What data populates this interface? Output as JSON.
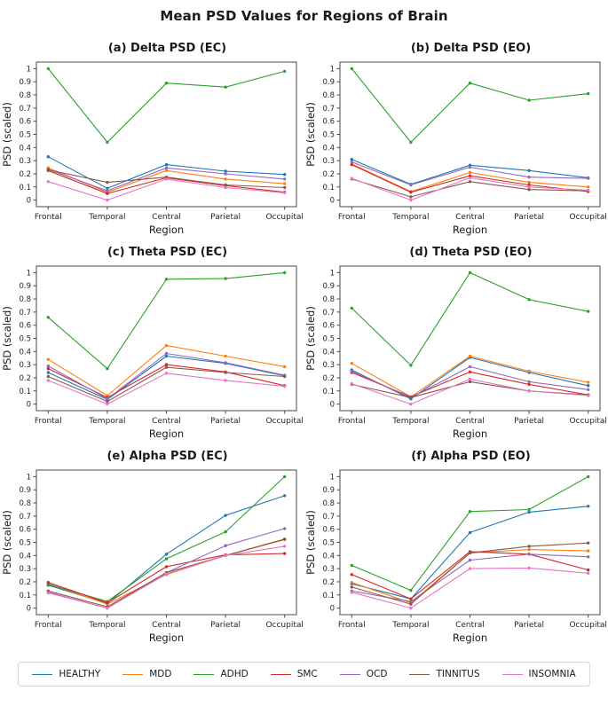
{
  "page": {
    "title": "Mean PSD Values for Regions of Brain"
  },
  "axis": {
    "xlabel": "Region",
    "ylabel": "PSD (scaled)",
    "categories": [
      "Frontal",
      "Temporal",
      "Central",
      "Parietal",
      "Occupital"
    ],
    "yticks": [
      0,
      0.1,
      0.2,
      0.3,
      0.4,
      0.5,
      0.6,
      0.7,
      0.8,
      0.9,
      1
    ]
  },
  "colors": {
    "HEALTHY": "#1f77b4",
    "MDD": "#ff7f0e",
    "ADHD": "#2ca02c",
    "SMC": "#d62728",
    "OCD": "#9467bd",
    "TINNITUS": "#8c564b",
    "INSOMNIA": "#e377c2"
  },
  "legend": {
    "items": [
      {
        "label": "HEALTHY",
        "color": "#1f77b4"
      },
      {
        "label": "MDD",
        "color": "#ff7f0e"
      },
      {
        "label": "ADHD",
        "color": "#2ca02c"
      },
      {
        "label": "SMC",
        "color": "#d62728"
      },
      {
        "label": "OCD",
        "color": "#9467bd"
      },
      {
        "label": "TINNITUS",
        "color": "#8c564b"
      },
      {
        "label": "INSOMNIA",
        "color": "#e377c2"
      }
    ]
  },
  "chart_data": [
    {
      "type": "line",
      "title": "(a) Delta PSD (EC)",
      "xlabel": "Region",
      "ylabel": "PSD (scaled)",
      "categories": [
        "Frontal",
        "Temporal",
        "Central",
        "Parietal",
        "Occupital"
      ],
      "ylim": [
        0,
        1
      ],
      "grid": false,
      "series": [
        {
          "name": "HEALTHY",
          "color": "#1f77b4",
          "values": [
            0.33,
            0.09,
            0.27,
            0.22,
            0.195
          ]
        },
        {
          "name": "MDD",
          "color": "#ff7f0e",
          "values": [
            0.245,
            0.06,
            0.225,
            0.16,
            0.125
          ]
        },
        {
          "name": "ADHD",
          "color": "#2ca02c",
          "values": [
            1.0,
            0.44,
            0.89,
            0.86,
            0.98
          ]
        },
        {
          "name": "SMC",
          "color": "#d62728",
          "values": [
            0.225,
            0.05,
            0.17,
            0.11,
            0.06
          ]
        },
        {
          "name": "OCD",
          "color": "#9467bd",
          "values": [
            0.235,
            0.07,
            0.245,
            0.2,
            0.16
          ]
        },
        {
          "name": "TINNITUS",
          "color": "#8c564b",
          "values": [
            0.23,
            0.135,
            0.175,
            0.115,
            0.095
          ]
        },
        {
          "name": "INSOMNIA",
          "color": "#e377c2",
          "values": [
            0.14,
            0.0,
            0.16,
            0.095,
            0.055
          ]
        }
      ]
    },
    {
      "type": "line",
      "title": "(b) Delta PSD (EO)",
      "xlabel": "Region",
      "ylabel": "PSD (scaled)",
      "categories": [
        "Frontal",
        "Temporal",
        "Central",
        "Parietal",
        "Occupital"
      ],
      "ylim": [
        0,
        1
      ],
      "grid": false,
      "series": [
        {
          "name": "HEALTHY",
          "color": "#1f77b4",
          "values": [
            0.31,
            0.12,
            0.265,
            0.225,
            0.17
          ]
        },
        {
          "name": "MDD",
          "color": "#ff7f0e",
          "values": [
            0.275,
            0.065,
            0.21,
            0.135,
            0.1
          ]
        },
        {
          "name": "ADHD",
          "color": "#2ca02c",
          "values": [
            1.0,
            0.44,
            0.89,
            0.76,
            0.81
          ]
        },
        {
          "name": "SMC",
          "color": "#d62728",
          "values": [
            0.27,
            0.06,
            0.185,
            0.115,
            0.065
          ]
        },
        {
          "name": "OCD",
          "color": "#9467bd",
          "values": [
            0.29,
            0.115,
            0.25,
            0.175,
            0.165
          ]
        },
        {
          "name": "TINNITUS",
          "color": "#8c564b",
          "values": [
            0.16,
            0.025,
            0.14,
            0.08,
            0.07
          ]
        },
        {
          "name": "INSOMNIA",
          "color": "#e377c2",
          "values": [
            0.165,
            0.0,
            0.17,
            0.1,
            0.075
          ]
        }
      ]
    },
    {
      "type": "line",
      "title": "(c) Theta PSD (EC)",
      "xlabel": "Region",
      "ylabel": "PSD (scaled)",
      "categories": [
        "Frontal",
        "Temporal",
        "Central",
        "Parietal",
        "Occupital"
      ],
      "ylim": [
        0,
        1
      ],
      "grid": false,
      "series": [
        {
          "name": "HEALTHY",
          "color": "#1f77b4",
          "values": [
            0.24,
            0.035,
            0.365,
            0.31,
            0.215
          ]
        },
        {
          "name": "MDD",
          "color": "#ff7f0e",
          "values": [
            0.34,
            0.065,
            0.445,
            0.365,
            0.285
          ]
        },
        {
          "name": "ADHD",
          "color": "#2ca02c",
          "values": [
            0.66,
            0.27,
            0.95,
            0.955,
            1.0
          ]
        },
        {
          "name": "SMC",
          "color": "#d62728",
          "values": [
            0.27,
            0.05,
            0.3,
            0.245,
            0.14
          ]
        },
        {
          "name": "OCD",
          "color": "#9467bd",
          "values": [
            0.29,
            0.04,
            0.385,
            0.315,
            0.22
          ]
        },
        {
          "name": "TINNITUS",
          "color": "#8c564b",
          "values": [
            0.21,
            0.02,
            0.28,
            0.24,
            0.21
          ]
        },
        {
          "name": "INSOMNIA",
          "color": "#e377c2",
          "values": [
            0.18,
            0.0,
            0.235,
            0.18,
            0.135
          ]
        }
      ]
    },
    {
      "type": "line",
      "title": "(d) Theta PSD (EO)",
      "xlabel": "Region",
      "ylabel": "PSD (scaled)",
      "categories": [
        "Frontal",
        "Temporal",
        "Central",
        "Parietal",
        "Occupital"
      ],
      "ylim": [
        0,
        1
      ],
      "grid": false,
      "series": [
        {
          "name": "HEALTHY",
          "color": "#1f77b4",
          "values": [
            0.26,
            0.04,
            0.355,
            0.24,
            0.14
          ]
        },
        {
          "name": "MDD",
          "color": "#ff7f0e",
          "values": [
            0.31,
            0.055,
            0.365,
            0.25,
            0.165
          ]
        },
        {
          "name": "ADHD",
          "color": "#2ca02c",
          "values": [
            0.73,
            0.295,
            1.0,
            0.795,
            0.705
          ]
        },
        {
          "name": "SMC",
          "color": "#d62728",
          "values": [
            0.24,
            0.055,
            0.245,
            0.15,
            0.07
          ]
        },
        {
          "name": "OCD",
          "color": "#9467bd",
          "values": [
            0.25,
            0.05,
            0.285,
            0.17,
            0.11
          ]
        },
        {
          "name": "TINNITUS",
          "color": "#8c564b",
          "values": [
            0.15,
            0.05,
            0.17,
            0.1,
            0.07
          ]
        },
        {
          "name": "INSOMNIA",
          "color": "#e377c2",
          "values": [
            0.155,
            0.0,
            0.19,
            0.1,
            0.065
          ]
        }
      ]
    },
    {
      "type": "line",
      "title": "(e) Alpha PSD (EC)",
      "xlabel": "Region",
      "ylabel": "PSD (scaled)",
      "categories": [
        "Frontal",
        "Temporal",
        "Central",
        "Parietal",
        "Occupital"
      ],
      "ylim": [
        0,
        1
      ],
      "grid": false,
      "series": [
        {
          "name": "HEALTHY",
          "color": "#1f77b4",
          "values": [
            0.175,
            0.035,
            0.41,
            0.705,
            0.855
          ]
        },
        {
          "name": "MDD",
          "color": "#ff7f0e",
          "values": [
            0.185,
            0.03,
            0.255,
            0.4,
            0.52
          ]
        },
        {
          "name": "ADHD",
          "color": "#2ca02c",
          "values": [
            0.18,
            0.05,
            0.375,
            0.58,
            1.0
          ]
        },
        {
          "name": "SMC",
          "color": "#d62728",
          "values": [
            0.195,
            0.04,
            0.315,
            0.405,
            0.415
          ]
        },
        {
          "name": "OCD",
          "color": "#9467bd",
          "values": [
            0.12,
            0.0,
            0.27,
            0.475,
            0.605
          ]
        },
        {
          "name": "TINNITUS",
          "color": "#8c564b",
          "values": [
            0.13,
            0.01,
            0.27,
            0.4,
            0.525
          ]
        },
        {
          "name": "INSOMNIA",
          "color": "#e377c2",
          "values": [
            0.115,
            0.0,
            0.26,
            0.4,
            0.47
          ]
        }
      ]
    },
    {
      "type": "line",
      "title": "(f) Alpha PSD (EO)",
      "xlabel": "Region",
      "ylabel": "PSD (scaled)",
      "categories": [
        "Frontal",
        "Temporal",
        "Central",
        "Parietal",
        "Occupital"
      ],
      "ylim": [
        0,
        1
      ],
      "grid": false,
      "series": [
        {
          "name": "HEALTHY",
          "color": "#1f77b4",
          "values": [
            0.185,
            0.07,
            0.575,
            0.73,
            0.775
          ]
        },
        {
          "name": "MDD",
          "color": "#ff7f0e",
          "values": [
            0.195,
            0.04,
            0.42,
            0.445,
            0.435
          ]
        },
        {
          "name": "ADHD",
          "color": "#2ca02c",
          "values": [
            0.325,
            0.135,
            0.735,
            0.75,
            1.0
          ]
        },
        {
          "name": "SMC",
          "color": "#d62728",
          "values": [
            0.255,
            0.07,
            0.43,
            0.41,
            0.29
          ]
        },
        {
          "name": "OCD",
          "color": "#9467bd",
          "values": [
            0.13,
            0.05,
            0.365,
            0.41,
            0.39
          ]
        },
        {
          "name": "TINNITUS",
          "color": "#8c564b",
          "values": [
            0.16,
            0.03,
            0.42,
            0.47,
            0.495
          ]
        },
        {
          "name": "INSOMNIA",
          "color": "#e377c2",
          "values": [
            0.12,
            0.0,
            0.3,
            0.305,
            0.265
          ]
        }
      ]
    }
  ]
}
